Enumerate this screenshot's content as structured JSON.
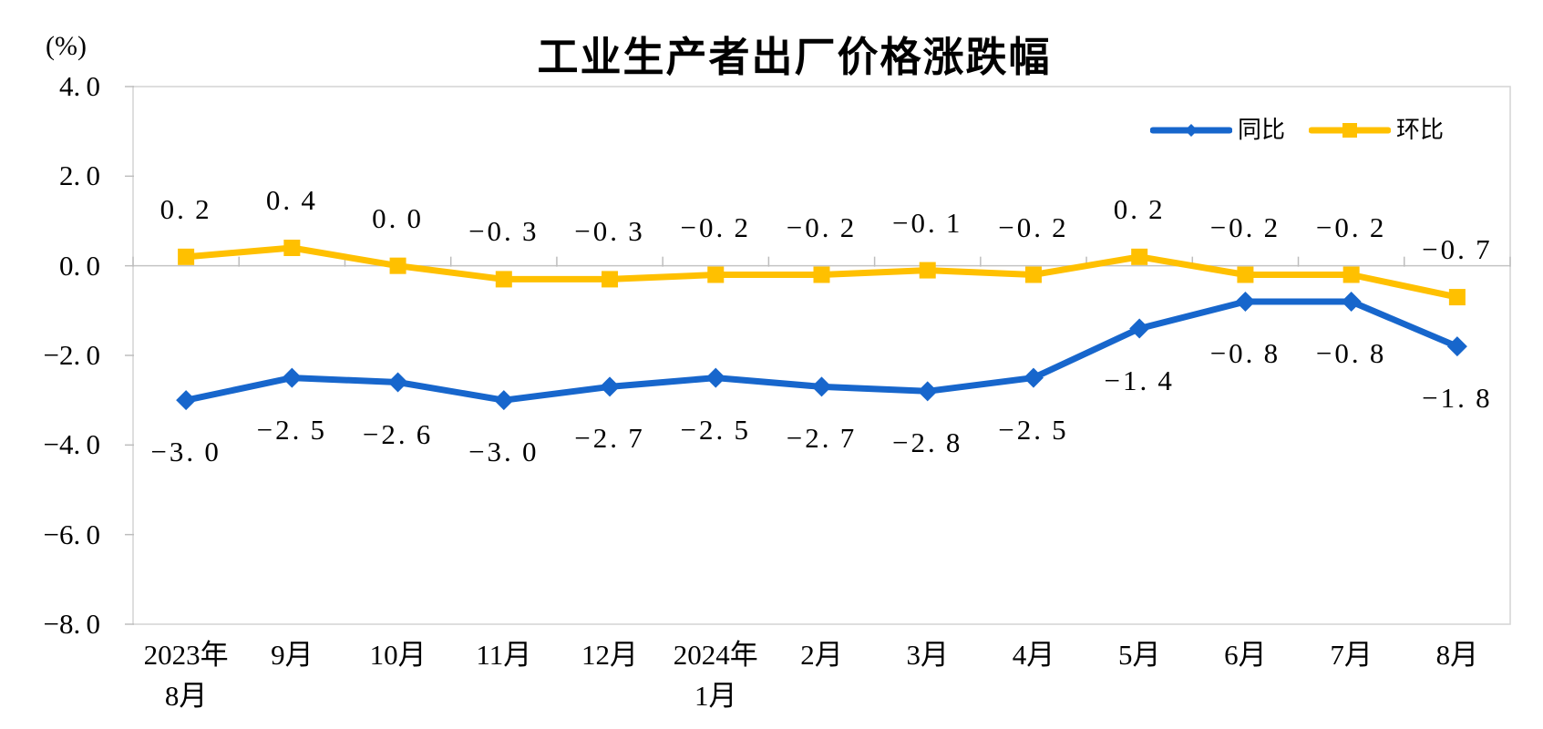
{
  "chart_data": {
    "type": "line",
    "title": "工业生产者出厂价格涨跌幅",
    "y_unit_label": "(%)",
    "categories": [
      "2023年\n8月",
      "9月",
      "10月",
      "11月",
      "12月",
      "2024年\n1月",
      "2月",
      "3月",
      "4月",
      "5月",
      "6月",
      "7月",
      "8月"
    ],
    "ylim": [
      -8.0,
      4.0
    ],
    "ytick_values": [
      4,
      2,
      0,
      -2,
      -4,
      -6,
      -8
    ],
    "ytick_labels": [
      "4.0",
      "2.0",
      "0.0",
      "-2.0",
      "-4.0",
      "-6.0",
      "-8.0"
    ],
    "grid": "zero-line-only",
    "legend_position": "top-right",
    "series": [
      {
        "name": "同比",
        "color": "#1766cc",
        "marker": "diamond",
        "label_position": "below",
        "values": [
          -3.0,
          -2.5,
          -2.6,
          -3.0,
          -2.7,
          -2.5,
          -2.7,
          -2.8,
          -2.5,
          -1.4,
          -0.8,
          -0.8,
          -1.8
        ],
        "labels": [
          "-3.0",
          "-2.5",
          "-2.6",
          "-3.0",
          "-2.7",
          "-2.5",
          "-2.7",
          "-2.8",
          "-2.5",
          "-1.4",
          "-0.8",
          "-0.8",
          "-1.8"
        ]
      },
      {
        "name": "环比",
        "color": "#ffc000",
        "marker": "square",
        "label_position": "above",
        "values": [
          0.2,
          0.4,
          0.0,
          -0.3,
          -0.3,
          -0.2,
          -0.2,
          -0.1,
          -0.2,
          0.2,
          -0.2,
          -0.2,
          -0.7
        ],
        "labels": [
          "0.2",
          "0.4",
          "0.0",
          "-0.3",
          "-0.3",
          "-0.2",
          "-0.2",
          "-0.1",
          "-0.2",
          "0.2",
          "-0.2",
          "-0.2",
          "-0.7"
        ]
      }
    ],
    "axis_colors": {
      "border": "#d4d4d4",
      "zero_line": "#c4c4c4",
      "tick": "#bdbdbd",
      "text": "#000000"
    }
  }
}
